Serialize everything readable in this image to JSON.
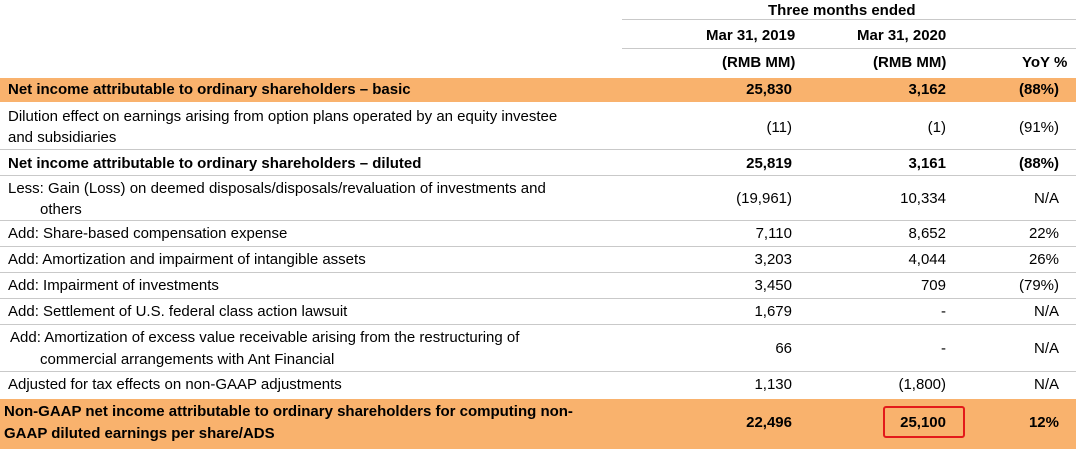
{
  "header": {
    "period": "Three months ended",
    "col1_date": "Mar 31, 2019",
    "col2_date": "Mar 31, 2020",
    "col1_unit": "(RMB MM)",
    "col2_unit": "(RMB MM)",
    "col3_label": "YoY %"
  },
  "rows": [
    {
      "label": "Net income attributable to ordinary shareholders – basic",
      "v1": "25,830",
      "v2": "3,162",
      "v3": "(88%)"
    },
    {
      "label_line1": "Dilution effect on earnings arising from option plans operated by an equity investee",
      "label_line2": "and subsidiaries",
      "v1": "(11)",
      "v2": "(1)",
      "v3": "(91%)"
    },
    {
      "label": "Net income attributable to ordinary shareholders – diluted",
      "v1": "25,819",
      "v2": "3,161",
      "v3": "(88%)"
    },
    {
      "label_line1": "Less: Gain (Loss) on deemed disposals/disposals/revaluation of investments and",
      "label_line2": "others",
      "v1": "(19,961)",
      "v2": "10,334",
      "v3": "N/A"
    },
    {
      "label": "Add: Share-based compensation expense",
      "v1": "7,110",
      "v2": "8,652",
      "v3": "22%"
    },
    {
      "label": "Add: Amortization and impairment of intangible assets",
      "v1": "3,203",
      "v2": "4,044",
      "v3": "26%"
    },
    {
      "label": "Add: Impairment of investments",
      "v1": "3,450",
      "v2": "709",
      "v3": "(79%)"
    },
    {
      "label": "Add: Settlement of U.S. federal class action lawsuit",
      "v1": "1,679",
      "v2": "-",
      "v3": "N/A"
    },
    {
      "label_line1": "Add: Amortization of excess value receivable arising from the restructuring of",
      "label_line2": "commercial arrangements with Ant Financial",
      "v1": "66",
      "v2": "-",
      "v3": "N/A"
    },
    {
      "label": "Adjusted for tax effects on non-GAAP adjustments",
      "v1": "1,130",
      "v2": "(1,800)",
      "v3": "N/A"
    },
    {
      "label_line1": "Non-GAAP net income attributable to ordinary shareholders for computing non-",
      "label_line2": "GAAP diluted earnings per share/ADS",
      "v1": "22,496",
      "v2": "25,100",
      "v3": "12%"
    }
  ],
  "colors": {
    "highlight_fill": "#f9b26d",
    "callout_border": "#e31a1a",
    "rule": "#c9c9c9"
  }
}
